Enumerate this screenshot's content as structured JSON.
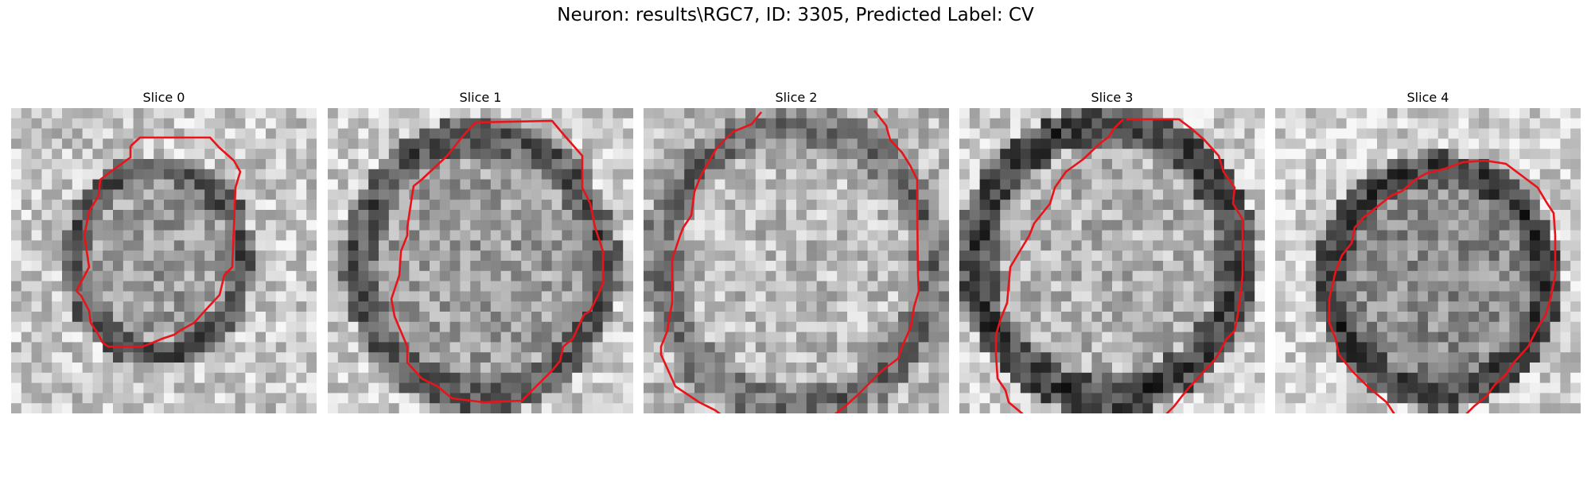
{
  "figure": {
    "title": "Neuron: results\\RGC7, ID: 3305, Predicted Label: CV"
  },
  "panels": [
    {
      "label": "Slice 0"
    },
    {
      "label": "Slice 1"
    },
    {
      "label": "Slice 2"
    },
    {
      "label": "Slice 3"
    },
    {
      "label": "Slice 4"
    }
  ],
  "colors": {
    "contour": "#e8141a",
    "background": "#ffffff"
  }
}
